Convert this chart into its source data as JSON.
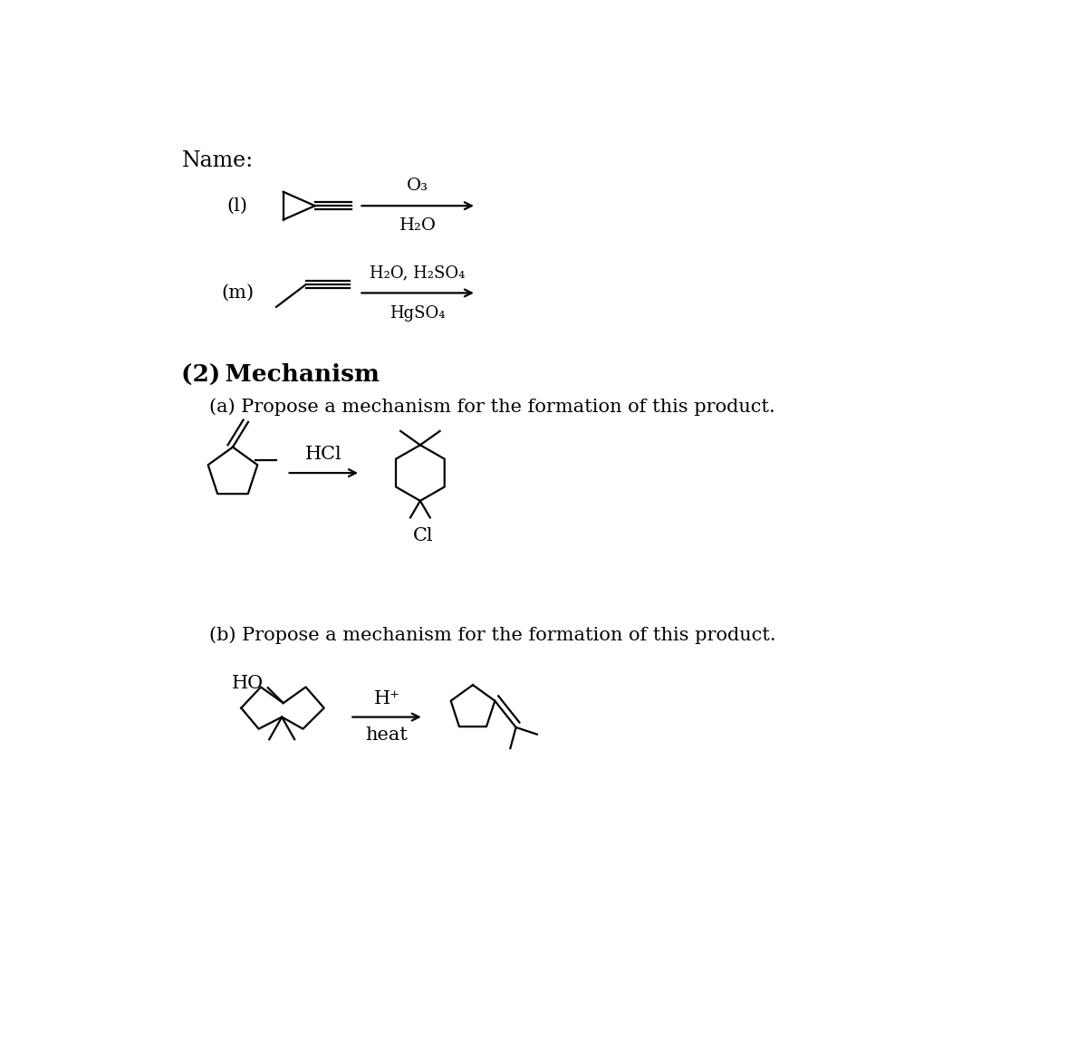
{
  "bg_color": "#ffffff",
  "text_color": "#000000",
  "title": "Name:",
  "label_l": "(l)",
  "label_m": "(m)",
  "reaction1_above": "O₃",
  "reaction1_below": "H₂O",
  "reaction_m_above": "H₂O, H₂SO₄",
  "reaction_m_below": "HgSO₄",
  "section2": "(2) Mechanism",
  "section2a": "(a) Propose a mechanism for the formation of this product.",
  "section2b": "(b) Propose a mechanism for the formation of this product.",
  "hcl_label": "HCl",
  "cl_label": "Cl",
  "hplus_label": "H⁺",
  "heat_label": "heat",
  "ho_label": "HO",
  "lw": 1.6,
  "fs_title": 17,
  "fs_label": 15,
  "fs_section": 19,
  "fs_text": 15,
  "fs_chem": 14
}
